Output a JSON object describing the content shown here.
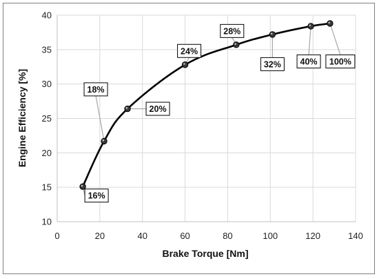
{
  "chart_data": {
    "type": "line",
    "title": "",
    "xlabel": "Brake Torque [Nm]",
    "ylabel": "Engine Efficiency [%]",
    "xlim": [
      0,
      140
    ],
    "ylim": [
      10,
      40
    ],
    "xticks": [
      "0",
      "20",
      "40",
      "60",
      "80",
      "100",
      "120",
      "140"
    ],
    "yticks": [
      "10",
      "15",
      "20",
      "25",
      "30",
      "35",
      "40"
    ],
    "grid": true,
    "legend": "none",
    "line_color": "#000000",
    "series": [
      {
        "x": [
          12,
          22,
          33,
          60,
          84,
          101,
          119,
          128
        ],
        "y": [
          15.1,
          21.7,
          26.4,
          32.8,
          35.7,
          37.2,
          38.4,
          38.8
        ],
        "labels": [
          "16%",
          "18%",
          "20%",
          "24%",
          "28%",
          "32%",
          "40%",
          "100%"
        ]
      }
    ]
  }
}
